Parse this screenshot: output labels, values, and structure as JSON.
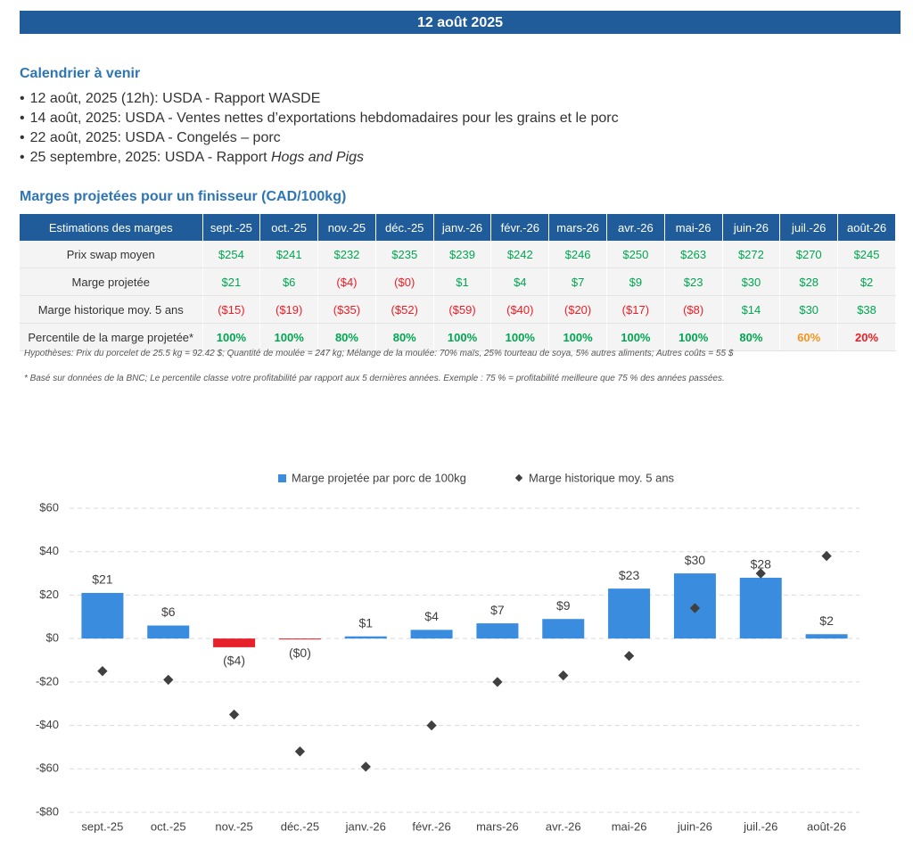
{
  "header": {
    "title": "12 août 2025"
  },
  "calendar": {
    "title": "Calendrier à venir",
    "items": [
      "12 août, 2025 (12h): USDA - Rapport WASDE",
      "14 août, 2025: USDA - Ventes nettes d’exportations hebdomadaires pour les grains et le porc",
      "22 août, 2025: USDA - Congelés – porc",
      {
        "text": "25 septembre, 2025: USDA - Rapport ",
        "emphasis": "Hogs and Pigs"
      }
    ]
  },
  "table": {
    "title": "Marges projetées pour un finisseur (CAD/100kg)",
    "header": [
      "Estimations des marges",
      "sept.-25",
      "oct.-25",
      "nov.-25",
      "déc.-25",
      "janv.-26",
      "févr.-26",
      "mars-26",
      "avr.-26",
      "mai-26",
      "juin-26",
      "juil.-26",
      "août-26"
    ],
    "rows": [
      {
        "label": "Prix swap moyen",
        "cells": [
          "$254",
          "$241",
          "$232",
          "$235",
          "$239",
          "$242",
          "$246",
          "$250",
          "$263",
          "$272",
          "$270",
          "$245"
        ],
        "colors": [
          "#00a651",
          "#00a651",
          "#00a651",
          "#00a651",
          "#00a651",
          "#00a651",
          "#00a651",
          "#00a651",
          "#00a651",
          "#00a651",
          "#00a651",
          "#00a651"
        ]
      },
      {
        "label": "Marge projetée",
        "cells": [
          "$21",
          "$6",
          "($4)",
          "($0)",
          "$1",
          "$4",
          "$7",
          "$9",
          "$23",
          "$30",
          "$28",
          "$2"
        ],
        "colors": [
          "#00a651",
          "#00a651",
          "#ed1c24",
          "#ed1c24",
          "#00a651",
          "#00a651",
          "#00a651",
          "#00a651",
          "#00a651",
          "#00a651",
          "#00a651",
          "#00a651"
        ]
      },
      {
        "label": "Marge historique moy. 5 ans",
        "cells": [
          "($15)",
          "($19)",
          "($35)",
          "($52)",
          "($59)",
          "($40)",
          "($20)",
          "($17)",
          "($8)",
          "$14",
          "$30",
          "$38"
        ],
        "colors": [
          "#ed1c24",
          "#ed1c24",
          "#ed1c24",
          "#ed1c24",
          "#ed1c24",
          "#ed1c24",
          "#ed1c24",
          "#ed1c24",
          "#ed1c24",
          "#00a651",
          "#00a651",
          "#00a651"
        ]
      },
      {
        "label": "Percentile de la marge projetée*",
        "cells": [
          "100%",
          "100%",
          "80%",
          "80%",
          "100%",
          "100%",
          "100%",
          "100%",
          "100%",
          "80%",
          "60%",
          "20%"
        ],
        "colors": [
          "#00a651",
          "#00a651",
          "#00a651",
          "#00a651",
          "#00a651",
          "#00a651",
          "#00a651",
          "#00a651",
          "#00a651",
          "#00a651",
          "#f7941d",
          "#ed1c24"
        ]
      }
    ]
  },
  "notes": [
    "Hypothèses: Prix du porcelet de 25.5 kg = 92.42 $; Quantité de moulée = 247 kg; Mélange de la moulée: 70% maïs, 25% tourteau de soya, 5% autres aliments; Autres coûts = 55 $",
    "* Basé sur données de la BNC; Le percentile classe votre profitabilité par rapport aux 5 dernières années. Exemple : 75 % = profitabilité meilleure que 75 % des années passées."
  ],
  "chart_data": {
    "type": "bar",
    "categories": [
      "sept.-25",
      "oct.-25",
      "nov.-25",
      "déc.-25",
      "janv.-26",
      "févr.-26",
      "mars-26",
      "avr.-26",
      "mai-26",
      "juin-26",
      "juil.-26",
      "août-26"
    ],
    "series": [
      {
        "name": "Marge projetée par porc de 100kg",
        "type": "bar",
        "color": "#3a8dde",
        "negative_color": "#e8202a",
        "values": [
          21,
          6,
          -4,
          -0.4,
          1,
          4,
          7,
          9,
          23,
          30,
          28,
          2
        ],
        "value_labels": [
          "$21",
          "$6",
          "($4)",
          "($0)",
          "$1",
          "$4",
          "$7",
          "$9",
          "$23",
          "$30",
          "$28",
          "$2"
        ]
      },
      {
        "name": "Marge historique moy. 5 ans",
        "type": "scatter",
        "color": "#404040",
        "values": [
          -15,
          -19,
          -35,
          -52,
          -59,
          -40,
          -20,
          -17,
          -8,
          14,
          30,
          38
        ]
      }
    ],
    "ylim": [
      -80,
      60
    ],
    "yticks": [
      {
        "value": -80,
        "label": "-$80"
      },
      {
        "value": -60,
        "label": "-$60"
      },
      {
        "value": -40,
        "label": "-$40"
      },
      {
        "value": -20,
        "label": "-$20"
      },
      {
        "value": 0,
        "label": "$0"
      },
      {
        "value": 20,
        "label": "$20"
      },
      {
        "value": 40,
        "label": "$40"
      },
      {
        "value": 60,
        "label": "$60"
      }
    ],
    "grid": true
  }
}
